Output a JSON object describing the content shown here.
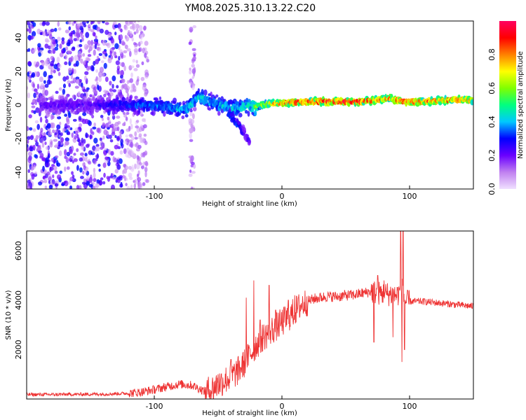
{
  "figure_title": "YM08.2025.310.13.22.C20",
  "chart_data": [
    {
      "id": "spectrogram",
      "type": "heatmap",
      "xlabel": "Height of straight line (km)",
      "ylabel": "Frequency (Hz)",
      "xlim": [
        -200,
        150
      ],
      "ylim": [
        -50,
        50
      ],
      "x_ticks": [
        -100,
        0,
        100
      ],
      "x_tick_labels": [
        "-100",
        "0",
        "100"
      ],
      "y_ticks": [
        -40,
        -20,
        0,
        20,
        40
      ],
      "y_tick_labels": [
        "-40",
        "-20",
        "0",
        "20",
        "40"
      ],
      "colorbar": {
        "label": "Normalized spectral amplitude",
        "range": [
          0,
          1
        ],
        "ticks": [
          0.0,
          0.2,
          0.4,
          0.6,
          0.8
        ],
        "tick_labels": [
          "0.0",
          "0.2",
          "0.4",
          "0.6",
          "0.8"
        ],
        "colors": [
          "#f0e0ff",
          "#c080f0",
          "#6a00ff",
          "#0000ff",
          "#00c8ff",
          "#00ff80",
          "#80ff00",
          "#ffff00",
          "#ff8000",
          "#ff0000",
          "#ff0060"
        ]
      },
      "features": [
        {
          "name": "broadband noise",
          "x_range": [
            -200,
            -105
          ],
          "f_range": [
            -50,
            50
          ],
          "amplitude": 0.2
        },
        {
          "name": "residual noise band",
          "x_range": [
            -72,
            -68
          ],
          "f_range": [
            -50,
            50
          ],
          "amplitude": 0.12
        },
        {
          "name": "carrier track",
          "points": [
            [
              -190,
              0,
              0.22
            ],
            [
              -170,
              0,
              0.24
            ],
            [
              -150,
              0,
              0.24
            ],
            [
              -130,
              0,
              0.3
            ],
            [
              -110,
              0,
              0.35
            ],
            [
              -90,
              -1,
              0.4
            ],
            [
              -75,
              -3,
              0.42
            ],
            [
              -65,
              5,
              0.45
            ],
            [
              -50,
              0,
              0.42
            ],
            [
              -35,
              -2,
              0.45
            ],
            [
              -25,
              0,
              0.5
            ],
            [
              -20,
              -1,
              0.6
            ],
            [
              -10,
              1,
              0.75
            ],
            [
              0,
              1,
              0.85
            ],
            [
              20,
              2,
              0.92
            ],
            [
              40,
              2,
              0.97
            ],
            [
              60,
              2,
              0.95
            ],
            [
              75,
              3,
              0.88
            ],
            [
              85,
              4,
              0.85
            ],
            [
              95,
              2,
              0.9
            ],
            [
              110,
              2,
              0.88
            ],
            [
              130,
              3,
              0.85
            ],
            [
              150,
              3,
              0.85
            ]
          ]
        },
        {
          "name": "descending branch",
          "points": [
            [
              -42,
              -5,
              0.4
            ],
            [
              -36,
              -10,
              0.35
            ],
            [
              -30,
              -16,
              0.3
            ],
            [
              -25,
              -22,
              0.22
            ]
          ]
        }
      ]
    },
    {
      "id": "snr",
      "type": "line",
      "xlabel": "Height of straight line (km)",
      "ylabel": "SNR (10 * v/v)",
      "xlim": [
        -200,
        150
      ],
      "ylim": [
        0,
        6800
      ],
      "x_ticks": [
        -100,
        0,
        100
      ],
      "x_tick_labels": [
        "-100",
        "0",
        "100"
      ],
      "y_ticks": [
        2000,
        4000,
        6000
      ],
      "y_tick_labels": [
        "2000",
        "4000",
        "6000"
      ],
      "color": "#ee3333",
      "x": [
        -200,
        -180,
        -160,
        -140,
        -120,
        -110,
        -100,
        -90,
        -80,
        -70,
        -60,
        -55,
        -50,
        -45,
        -40,
        -35,
        -30,
        -25,
        -20,
        -15,
        -10,
        -5,
        0,
        5,
        10,
        15,
        20,
        25,
        30,
        35,
        40,
        45,
        50,
        55,
        60,
        65,
        70,
        75,
        80,
        85,
        90,
        92,
        94,
        96,
        98,
        100,
        110,
        120,
        130,
        140,
        150
      ],
      "y": [
        180,
        180,
        190,
        200,
        230,
        280,
        380,
        500,
        600,
        550,
        300,
        400,
        600,
        750,
        900,
        1100,
        1400,
        1800,
        2200,
        2500,
        2700,
        2900,
        3100,
        3300,
        3550,
        3800,
        3950,
        4050,
        4100,
        4150,
        4150,
        4150,
        4200,
        4200,
        4250,
        4300,
        4350,
        4300,
        4250,
        4250,
        4200,
        4300,
        4500,
        4000,
        3900,
        3950,
        3950,
        3900,
        3850,
        3800,
        3750
      ],
      "spikes": [
        [
          -50,
          1000
        ],
        [
          -40,
          1600
        ],
        [
          -28,
          4100
        ],
        [
          -22,
          4800
        ],
        [
          -17,
          3200
        ],
        [
          -10,
          4600
        ],
        [
          -5,
          3600
        ],
        [
          5,
          4000
        ],
        [
          10,
          4200
        ],
        [
          72,
          2300
        ],
        [
          75,
          5000
        ],
        [
          80,
          4800
        ],
        [
          87,
          2500
        ],
        [
          93,
          6800
        ],
        [
          94,
          1500
        ],
        [
          95,
          6800
        ],
        [
          96,
          2000
        ]
      ]
    }
  ]
}
